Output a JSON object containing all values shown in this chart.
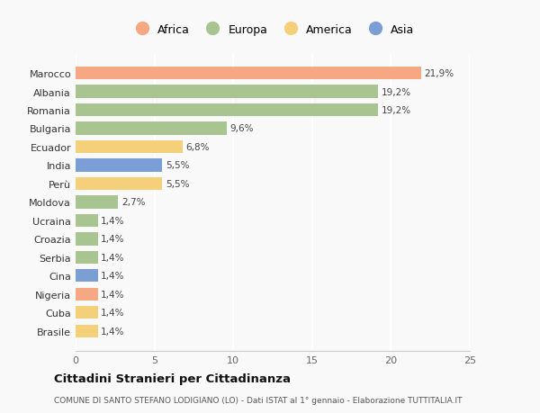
{
  "countries": [
    "Brasile",
    "Cuba",
    "Nigeria",
    "Cina",
    "Serbia",
    "Croazia",
    "Ucraina",
    "Moldova",
    "Perù",
    "India",
    "Ecuador",
    "Bulgaria",
    "Romania",
    "Albania",
    "Marocco"
  ],
  "values": [
    1.4,
    1.4,
    1.4,
    1.4,
    1.4,
    1.4,
    1.4,
    2.7,
    5.5,
    5.5,
    6.8,
    9.6,
    19.2,
    19.2,
    21.9
  ],
  "labels": [
    "1,4%",
    "1,4%",
    "1,4%",
    "1,4%",
    "1,4%",
    "1,4%",
    "1,4%",
    "2,7%",
    "5,5%",
    "5,5%",
    "6,8%",
    "9,6%",
    "19,2%",
    "19,2%",
    "21,9%"
  ],
  "colors": [
    "#f5d07a",
    "#f5d07a",
    "#f5a882",
    "#7b9fd4",
    "#a8c490",
    "#a8c490",
    "#a8c490",
    "#a8c490",
    "#f5d07a",
    "#7b9fd4",
    "#f5d07a",
    "#a8c490",
    "#a8c490",
    "#a8c490",
    "#f5a882"
  ],
  "continent_colors": {
    "Africa": "#f5a882",
    "Europa": "#a8c490",
    "America": "#f5d07a",
    "Asia": "#7b9fd4"
  },
  "xlim": [
    0,
    25
  ],
  "xticks": [
    0,
    5,
    10,
    15,
    20,
    25
  ],
  "title": "Cittadini Stranieri per Cittadinanza",
  "subtitle": "COMUNE DI SANTO STEFANO LODIGIANO (LO) - Dati ISTAT al 1° gennaio - Elaborazione TUTTITALIA.IT",
  "bg_color": "#f9f9f9",
  "bar_height": 0.7
}
